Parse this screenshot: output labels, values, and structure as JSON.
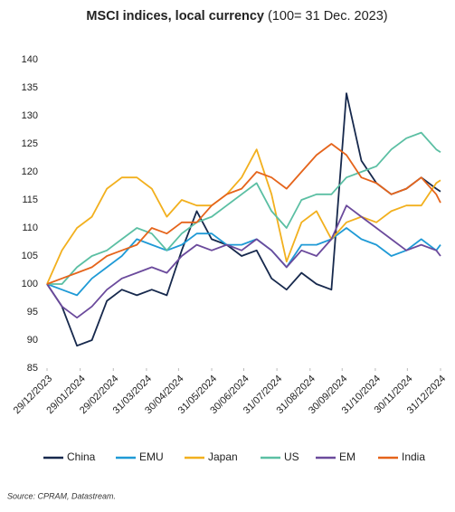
{
  "chart_data": {
    "type": "line",
    "title": "MSCI indices, local currency",
    "subtitle": "(100= 31 Dec. 2023)",
    "source": "Source: CPRAM, Datastream.",
    "x": [
      "2023-12-29",
      "2024-01-12",
      "2024-01-26",
      "2024-02-09",
      "2024-02-23",
      "2024-03-08",
      "2024-03-22",
      "2024-04-05",
      "2024-04-19",
      "2024-05-03",
      "2024-05-17",
      "2024-05-31",
      "2024-06-14",
      "2024-06-28",
      "2024-07-12",
      "2024-07-26",
      "2024-08-09",
      "2024-08-23",
      "2024-09-06",
      "2024-09-20",
      "2024-10-04",
      "2024-10-18",
      "2024-11-01",
      "2024-11-15",
      "2024-11-29",
      "2024-12-13",
      "2024-12-27",
      "2024-12-31"
    ],
    "xlim": [
      "2023-12-29",
      "2024-12-31"
    ],
    "xticks": [
      {
        "value": "2023-12-29",
        "label": "29/12/2023"
      },
      {
        "value": "2024-01-29",
        "label": "29/01/2024"
      },
      {
        "value": "2024-02-29",
        "label": "29/02/2024"
      },
      {
        "value": "2024-03-31",
        "label": "31/03/2024"
      },
      {
        "value": "2024-04-30",
        "label": "30/04/2024"
      },
      {
        "value": "2024-05-31",
        "label": "31/05/2024"
      },
      {
        "value": "2024-06-30",
        "label": "30/06/2024"
      },
      {
        "value": "2024-07-31",
        "label": "31/07/2024"
      },
      {
        "value": "2024-08-31",
        "label": "31/08/2024"
      },
      {
        "value": "2024-09-30",
        "label": "30/09/2024"
      },
      {
        "value": "2024-10-31",
        "label": "31/10/2024"
      },
      {
        "value": "2024-11-30",
        "label": "30/11/2024"
      },
      {
        "value": "2024-12-31",
        "label": "31/12/2024"
      }
    ],
    "ylim": [
      85,
      140
    ],
    "yticks": [
      85,
      90,
      95,
      100,
      105,
      110,
      115,
      120,
      125,
      130,
      135,
      140
    ],
    "grid": false,
    "legend": "bottom",
    "series": [
      {
        "name": "China",
        "color": "#17294d",
        "values": [
          100,
          96,
          89,
          90,
          97,
          99,
          98,
          99,
          98,
          106,
          113,
          108,
          107,
          105,
          106,
          101,
          99,
          102,
          100,
          99,
          134,
          122,
          118,
          116,
          117,
          119,
          117,
          116.5
        ]
      },
      {
        "name": "EMU",
        "color": "#1f9ad6",
        "values": [
          100,
          99,
          98,
          101,
          103,
          105,
          108,
          107,
          106,
          107,
          109,
          109,
          107,
          107,
          108,
          106,
          103,
          107,
          107,
          108,
          110,
          108,
          107,
          105,
          106,
          108,
          106,
          107
        ]
      },
      {
        "name": "Japan",
        "color": "#f2b01e",
        "values": [
          100,
          106,
          110,
          112,
          117,
          119,
          119,
          117,
          112,
          115,
          114,
          114,
          116,
          119,
          124,
          116,
          104,
          111,
          113,
          108,
          111,
          112,
          111,
          113,
          114,
          114,
          118,
          118.5
        ]
      },
      {
        "name": "US",
        "color": "#5bbfa3",
        "values": [
          100,
          100,
          103,
          105,
          106,
          108,
          110,
          109,
          106,
          109,
          111,
          112,
          114,
          116,
          118,
          113,
          110,
          115,
          116,
          116,
          119,
          120,
          121,
          124,
          126,
          127,
          124,
          123.5
        ]
      },
      {
        "name": "EM",
        "color": "#6b4a9c",
        "values": [
          100,
          96,
          94,
          96,
          99,
          101,
          102,
          103,
          102,
          105,
          107,
          106,
          107,
          106,
          108,
          106,
          103,
          106,
          105,
          108,
          114,
          112,
          110,
          108,
          106,
          107,
          106,
          105
        ]
      },
      {
        "name": "India",
        "color": "#e5641b",
        "values": [
          100,
          101,
          102,
          103,
          105,
          106,
          107,
          110,
          109,
          111,
          111,
          114,
          116,
          117,
          120,
          119,
          117,
          120,
          123,
          125,
          123,
          119,
          118,
          116,
          117,
          119,
          116,
          114.5
        ]
      }
    ]
  }
}
